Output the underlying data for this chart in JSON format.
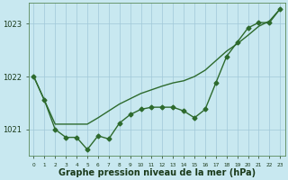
{
  "xlabel": "Graphe pression niveau de la mer (hPa)",
  "x": [
    0,
    1,
    2,
    3,
    4,
    5,
    6,
    7,
    8,
    9,
    10,
    11,
    12,
    13,
    14,
    15,
    16,
    17,
    18,
    19,
    20,
    21,
    22,
    23
  ],
  "y_main": [
    1022.0,
    1021.55,
    1021.0,
    1020.85,
    1020.85,
    1020.62,
    1020.88,
    1020.82,
    1021.12,
    1021.28,
    1021.38,
    1021.42,
    1021.42,
    1021.42,
    1021.35,
    1021.22,
    1021.38,
    1021.88,
    1022.38,
    1022.65,
    1022.92,
    1023.02,
    1023.02,
    1023.28
  ],
  "y_smooth": [
    1022.0,
    1021.55,
    1021.1,
    1021.1,
    1021.1,
    1021.1,
    1021.22,
    1021.35,
    1021.48,
    1021.58,
    1021.68,
    1021.75,
    1021.82,
    1021.88,
    1021.92,
    1022.0,
    1022.12,
    1022.3,
    1022.48,
    1022.62,
    1022.78,
    1022.95,
    1023.05,
    1023.28
  ],
  "ylim": [
    1020.5,
    1023.4
  ],
  "ytick_vals": [
    1021.0,
    1022.0
  ],
  "ytick_labels": [
    "1021",
    "1022"
  ],
  "ytop_label": "1023",
  "ytop_val": 1023.0,
  "line_color": "#2d6a2d",
  "marker_style": "D",
  "bg_color": "#c8e8f0",
  "grid_color": "#a0c8d8",
  "axis_label_color": "#1a3a1a",
  "marker_size": 2.5,
  "line_width": 1.0,
  "xlabel_fontsize": 7,
  "ytick_fontsize": 6,
  "xtick_fontsize": 4.2
}
